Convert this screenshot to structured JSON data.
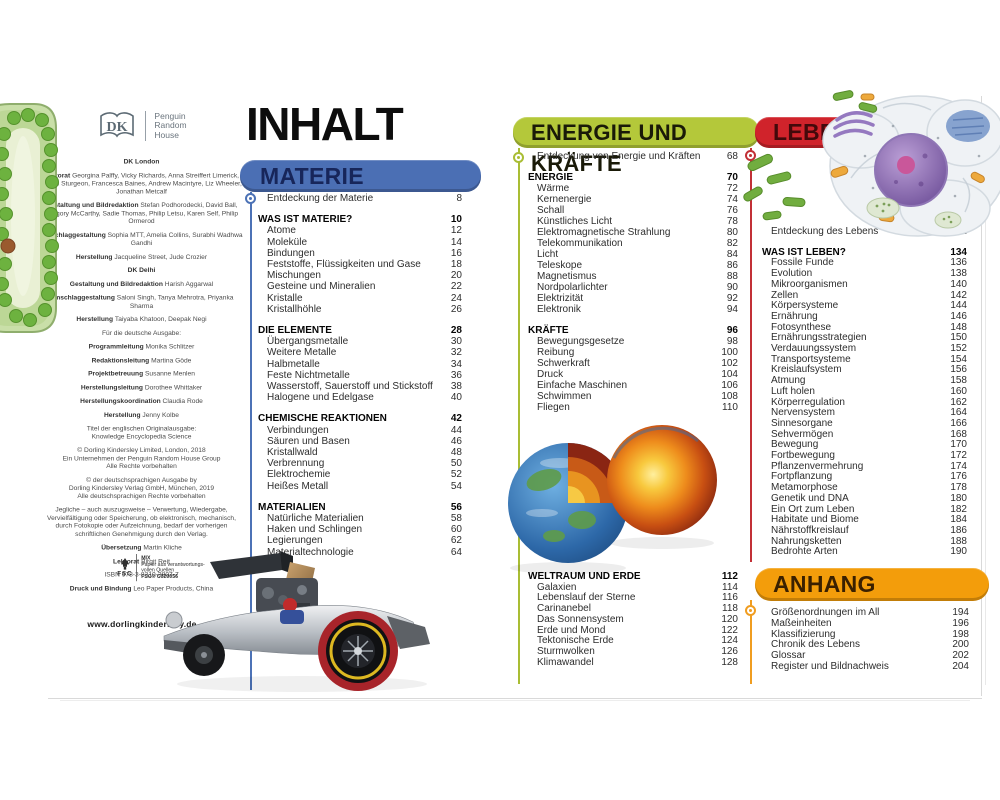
{
  "toc": {
    "title": "INHALT",
    "sections": [
      {
        "id": "materie",
        "title": "MATERIE",
        "band": "#4b6fb4",
        "text": "#17265a",
        "line": "#4c72b6",
        "entries": [
          {
            "t": "intro",
            "l": "Entdeckung der Materie",
            "p": "8"
          },
          {
            "t": "h",
            "l": "WAS IST MATERIE?",
            "p": "10"
          },
          {
            "t": "i",
            "l": "Atome",
            "p": "12"
          },
          {
            "t": "i",
            "l": "Moleküle",
            "p": "14"
          },
          {
            "t": "i",
            "l": "Bindungen",
            "p": "16"
          },
          {
            "t": "i",
            "l": "Feststoffe, Flüssigkeiten und Gase",
            "p": "18"
          },
          {
            "t": "i",
            "l": "Mischungen",
            "p": "20"
          },
          {
            "t": "i",
            "l": "Gesteine und Mineralien",
            "p": "22"
          },
          {
            "t": "i",
            "l": "Kristalle",
            "p": "24"
          },
          {
            "t": "i",
            "l": "Kristallhöhle",
            "p": "26"
          },
          {
            "t": "h",
            "l": "DIE ELEMENTE",
            "p": "28"
          },
          {
            "t": "i",
            "l": "Übergangsmetalle",
            "p": "30"
          },
          {
            "t": "i",
            "l": "Weitere Metalle",
            "p": "32"
          },
          {
            "t": "i",
            "l": "Halbmetalle",
            "p": "34"
          },
          {
            "t": "i",
            "l": "Feste Nichtmetalle",
            "p": "36"
          },
          {
            "t": "i",
            "l": "Wasserstoff, Sauerstoff und Stickstoff",
            "p": "38"
          },
          {
            "t": "i",
            "l": "Halogene und Edelgase",
            "p": "40"
          },
          {
            "t": "h",
            "l": "CHEMISCHE REAKTIONEN",
            "p": "42"
          },
          {
            "t": "i",
            "l": "Verbindungen",
            "p": "44"
          },
          {
            "t": "i",
            "l": "Säuren und Basen",
            "p": "46"
          },
          {
            "t": "i",
            "l": "Kristallwald",
            "p": "48"
          },
          {
            "t": "i",
            "l": "Verbrennung",
            "p": "50"
          },
          {
            "t": "i",
            "l": "Elektrochemie",
            "p": "52"
          },
          {
            "t": "i",
            "l": "Heißes Metall",
            "p": "54"
          },
          {
            "t": "h",
            "l": "MATERIALIEN",
            "p": "56"
          },
          {
            "t": "i",
            "l": "Natürliche Materialien",
            "p": "58"
          },
          {
            "t": "i",
            "l": "Haken und Schlingen",
            "p": "60"
          },
          {
            "t": "i",
            "l": "Legierungen",
            "p": "62"
          },
          {
            "t": "i",
            "l": "Materialtechnologie",
            "p": "64"
          }
        ]
      },
      {
        "id": "energie",
        "title": "ENERGIE UND KRÄFTE",
        "band": "#b4c83a",
        "text": "#1a1a08",
        "line": "#a9bd34",
        "entries": [
          {
            "t": "intro",
            "l": "Entdeckung von Energie und Kräften",
            "p": "68"
          },
          {
            "t": "h",
            "l": "ENERGIE",
            "p": "70"
          },
          {
            "t": "i",
            "l": "Wärme",
            "p": "72"
          },
          {
            "t": "i",
            "l": "Kernenergie",
            "p": "74"
          },
          {
            "t": "i",
            "l": "Schall",
            "p": "76"
          },
          {
            "t": "i",
            "l": "Künstliches Licht",
            "p": "78"
          },
          {
            "t": "i",
            "l": "Elektromagnetische Strahlung",
            "p": "80"
          },
          {
            "t": "i",
            "l": "Telekommunikation",
            "p": "82"
          },
          {
            "t": "i",
            "l": "Licht",
            "p": "84"
          },
          {
            "t": "i",
            "l": "Teleskope",
            "p": "86"
          },
          {
            "t": "i",
            "l": "Magnetismus",
            "p": "88"
          },
          {
            "t": "i",
            "l": "Nordpolarlichter",
            "p": "90"
          },
          {
            "t": "i",
            "l": "Elektrizität",
            "p": "92"
          },
          {
            "t": "i",
            "l": "Elektronik",
            "p": "94"
          },
          {
            "t": "h",
            "l": "KRÄFTE",
            "p": "96"
          },
          {
            "t": "i",
            "l": "Bewegungsgesetze",
            "p": "98"
          },
          {
            "t": "i",
            "l": "Reibung",
            "p": "100"
          },
          {
            "t": "i",
            "l": "Schwerkraft",
            "p": "102"
          },
          {
            "t": "i",
            "l": "Druck",
            "p": "104"
          },
          {
            "t": "i",
            "l": "Einfache Maschinen",
            "p": "106"
          },
          {
            "t": "i",
            "l": "Schwimmen",
            "p": "108"
          },
          {
            "t": "i",
            "l": "Fliegen",
            "p": "110"
          }
        ]
      },
      {
        "id": "weltraum",
        "title": "WELTRAUM UND ERDE",
        "band": null,
        "text": "#050505",
        "line": null,
        "entries": [
          {
            "t": "h",
            "l": "WELTRAUM UND ERDE",
            "p": "112"
          },
          {
            "t": "i",
            "l": "Galaxien",
            "p": "114"
          },
          {
            "t": "i",
            "l": "Lebenslauf der Sterne",
            "p": "116"
          },
          {
            "t": "i",
            "l": "Carinanebel",
            "p": "118"
          },
          {
            "t": "i",
            "l": "Das Sonnensystem",
            "p": "120"
          },
          {
            "t": "i",
            "l": "Erde und Mond",
            "p": "122"
          },
          {
            "t": "i",
            "l": "Tektonische Erde",
            "p": "124"
          },
          {
            "t": "i",
            "l": "Sturmwolken",
            "p": "126"
          },
          {
            "t": "i",
            "l": "Klimawandel",
            "p": "128"
          }
        ]
      },
      {
        "id": "leben",
        "title": "LEBEN",
        "band": "#d0232b",
        "text": "#43090b",
        "line": "#c23036",
        "entries": [
          {
            "t": "intro",
            "l": "Entdeckung des Lebens",
            "p": "132"
          },
          {
            "t": "h",
            "l": "WAS IST LEBEN?",
            "p": "134"
          },
          {
            "t": "i",
            "l": "Fossile Funde",
            "p": "136"
          },
          {
            "t": "i",
            "l": "Evolution",
            "p": "138"
          },
          {
            "t": "i",
            "l": "Mikroorganismen",
            "p": "140"
          },
          {
            "t": "i",
            "l": "Zellen",
            "p": "142"
          },
          {
            "t": "i",
            "l": "Körpersysteme",
            "p": "144"
          },
          {
            "t": "i",
            "l": "Ernährung",
            "p": "146"
          },
          {
            "t": "i",
            "l": "Fotosynthese",
            "p": "148"
          },
          {
            "t": "i",
            "l": "Ernährungsstrategien",
            "p": "150"
          },
          {
            "t": "i",
            "l": "Verdauungssystem",
            "p": "152"
          },
          {
            "t": "i",
            "l": "Transportsysteme",
            "p": "154"
          },
          {
            "t": "i",
            "l": "Kreislaufsystem",
            "p": "156"
          },
          {
            "t": "i",
            "l": "Atmung",
            "p": "158"
          },
          {
            "t": "i",
            "l": "Luft holen",
            "p": "160"
          },
          {
            "t": "i",
            "l": "Körperregulation",
            "p": "162"
          },
          {
            "t": "i",
            "l": "Nervensystem",
            "p": "164"
          },
          {
            "t": "i",
            "l": "Sinnesorgane",
            "p": "166"
          },
          {
            "t": "i",
            "l": "Sehvermögen",
            "p": "168"
          },
          {
            "t": "i",
            "l": "Bewegung",
            "p": "170"
          },
          {
            "t": "i",
            "l": "Fortbewegung",
            "p": "172"
          },
          {
            "t": "i",
            "l": "Pflanzenvermehrung",
            "p": "174"
          },
          {
            "t": "i",
            "l": "Fortpflanzung",
            "p": "176"
          },
          {
            "t": "i",
            "l": "Metamorphose",
            "p": "178"
          },
          {
            "t": "i",
            "l": "Genetik und DNA",
            "p": "180"
          },
          {
            "t": "i",
            "l": "Ein Ort zum Leben",
            "p": "182"
          },
          {
            "t": "i",
            "l": "Habitate und Biome",
            "p": "184"
          },
          {
            "t": "i",
            "l": "Nährstoffkreislauf",
            "p": "186"
          },
          {
            "t": "i",
            "l": "Nahrungsketten",
            "p": "188"
          },
          {
            "t": "i",
            "l": "Bedrohte Arten",
            "p": "190"
          }
        ]
      },
      {
        "id": "anhang",
        "title": "ANHANG",
        "band": "#f39d0b",
        "text": "#3a2000",
        "line": "#f09d20",
        "entries": [
          {
            "t": "i",
            "l": "Größenordnungen im All",
            "p": "194"
          },
          {
            "t": "i",
            "l": "Maßeinheiten",
            "p": "196"
          },
          {
            "t": "i",
            "l": "Klassifizierung",
            "p": "198"
          },
          {
            "t": "i",
            "l": "Chronik des Lebens",
            "p": "200"
          },
          {
            "t": "i",
            "l": "Glossar",
            "p": "202"
          },
          {
            "t": "i",
            "l": "Register und Bildnachweis",
            "p": "204"
          }
        ]
      }
    ]
  },
  "imprint": {
    "logo": "DK",
    "brand": [
      "Penguin",
      "Random",
      "House"
    ],
    "blocks": [
      {
        "h": true,
        "text": "DK London"
      },
      {
        "label": "Lektorat",
        "text": "Georgina Palffy, Vicky Richards, Anna Streiffert Limerick, Alison Sturgeon, Francesca Baines, Andrew Macintyre, Liz Wheeler, Jonathan Metcalf"
      },
      {
        "label": "Gestaltung und Bildredaktion",
        "text": "Stefan Podhorodecki, David Ball, Gregory McCarthy, Sadie Thomas, Philip Letsu, Karen Self, Philip Ormerod"
      },
      {
        "label": "Umschlaggestaltung",
        "text": "Sophia MTT, Amelia Collins, Surabhi Wadhwa Gandhi"
      },
      {
        "label": "Herstellung",
        "text": "Jacqueline Street, Jude Crozier"
      },
      {
        "h": true,
        "text": "DK Delhi"
      },
      {
        "label": "Gestaltung und Bildredaktion",
        "text": "Harish Aggarwal"
      },
      {
        "label": "Umschlaggestaltung",
        "text": "Saloni Singh, Tanya Mehrotra, Priyanka Sharma"
      },
      {
        "label": "Herstellung",
        "text": "Taiyaba Khatoon, Deepak Negi"
      },
      {
        "text": "Für die deutsche Ausgabe:"
      },
      {
        "label": "Programmleitung",
        "text": "Monika Schlitzer"
      },
      {
        "label": "Redaktionsleitung",
        "text": "Martina Göde"
      },
      {
        "label": "Projektbetreuung",
        "text": "Susanne Menlen"
      },
      {
        "label": "Herstellungsleitung",
        "text": "Dorothee Whittaker"
      },
      {
        "label": "Herstellungskoordination",
        "text": "Claudia Rode"
      },
      {
        "label": "Herstellung",
        "text": "Jenny Kolbe"
      },
      {
        "lines": [
          "Titel der englischen Originalausgabe:",
          "Knowledge Encyclopedia Science"
        ]
      },
      {
        "lines": [
          "© Dorling Kindersley Limited, London, 2018",
          "Ein Unternehmen der Penguin Random House Group",
          "Alle Rechte vorbehalten"
        ]
      },
      {
        "lines": [
          "© der deutschsprachigen Ausgabe by",
          "Dorling Kindersley Verlag GmbH, München, 2019",
          "Alle deutschsprachigen Rechte vorbehalten"
        ]
      },
      {
        "text": "Jegliche – auch auszugsweise – Verwertung, Wiedergabe, Vervielfältigung oder Speicherung, ob elektronisch, mechanisch, durch Fotokopie oder Aufzeichnung, bedarf der vorherigen schriftlichen Genehmigung durch den Verlag."
      },
      {
        "label": "Übersetzung",
        "text": "Martin Kliche"
      },
      {
        "label": "Lektorat",
        "text": "Birgit Reit"
      },
      {
        "text": "ISBN 978-3-8310-3807-7"
      },
      {
        "label": "Druck und Bindung",
        "text": "Leo Paper Products, China"
      }
    ],
    "fsc": {
      "initials": "FSC",
      "mix": "MIX",
      "line1": "Papier aus verantwortungs-",
      "line2": "vollen Quellen",
      "code": "FSC® C020056"
    },
    "website": "www.dorlingkindersley.de"
  }
}
